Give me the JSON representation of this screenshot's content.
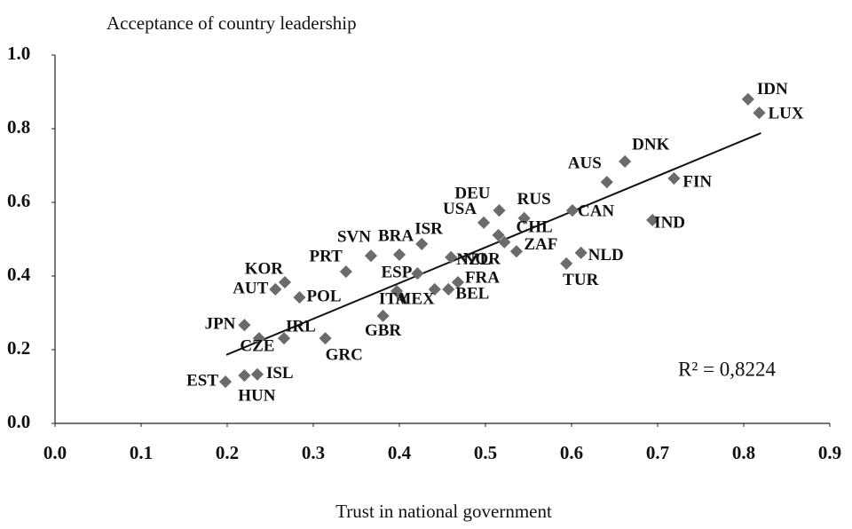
{
  "chart_data": {
    "type": "scatter",
    "y_label": "Acceptance of country leadership",
    "x_label": "Trust in national government",
    "annotation": "R² = 0,8224",
    "color": "#6b6b6b",
    "xlim": [
      0.0,
      0.9
    ],
    "ylim": [
      0.0,
      1.0
    ],
    "xticks": [
      {
        "value": 0,
        "label": "0.0"
      },
      0.1,
      0.2,
      0.3,
      0.4,
      0.5,
      0.6,
      0.7,
      0.8,
      0.9
    ],
    "yticks": [
      {
        "value": 0,
        "label": "0.0"
      },
      0.2,
      0.4,
      0.6,
      0.8,
      {
        "value": 1,
        "label": "1.0"
      }
    ],
    "labels": [
      "IDN",
      "LUX",
      "DNK",
      "AUS",
      "FIN",
      "IND",
      "CAN",
      "RUS",
      "DEU",
      "USA",
      "CHL",
      "ZAF",
      "NOR",
      "NLD",
      "TUR",
      "ISR",
      "BRA",
      "SVN",
      "PRT",
      "NZL",
      "ESP",
      "FRA",
      "BEL",
      "MEX",
      "ITA",
      "GBR",
      "KOR",
      "AUT",
      "POL",
      "JPN",
      "IRL",
      "CZE",
      "GRC",
      "ISL",
      "HUN",
      "EST"
    ],
    "x": [
      0.805,
      0.818,
      0.662,
      0.641,
      0.719,
      0.694,
      0.601,
      0.545,
      0.516,
      0.498,
      0.515,
      0.522,
      0.536,
      0.611,
      0.594,
      0.426,
      0.4,
      0.367,
      0.338,
      0.46,
      0.421,
      0.468,
      0.457,
      0.441,
      0.397,
      0.381,
      0.267,
      0.256,
      0.284,
      0.22,
      0.266,
      0.237,
      0.314,
      0.235,
      0.22,
      0.198
    ],
    "y": [
      0.88,
      0.843,
      0.711,
      0.655,
      0.665,
      0.552,
      0.578,
      0.557,
      0.578,
      0.545,
      0.511,
      0.492,
      0.467,
      0.463,
      0.434,
      0.487,
      0.458,
      0.455,
      0.412,
      0.451,
      0.407,
      0.383,
      0.364,
      0.364,
      0.359,
      0.292,
      0.383,
      0.364,
      0.342,
      0.267,
      0.231,
      0.231,
      0.231,
      0.133,
      0.13,
      0.113
    ],
    "trendline": {
      "x": [
        0.199,
        0.82
      ],
      "y": [
        0.186,
        0.788
      ]
    }
  }
}
